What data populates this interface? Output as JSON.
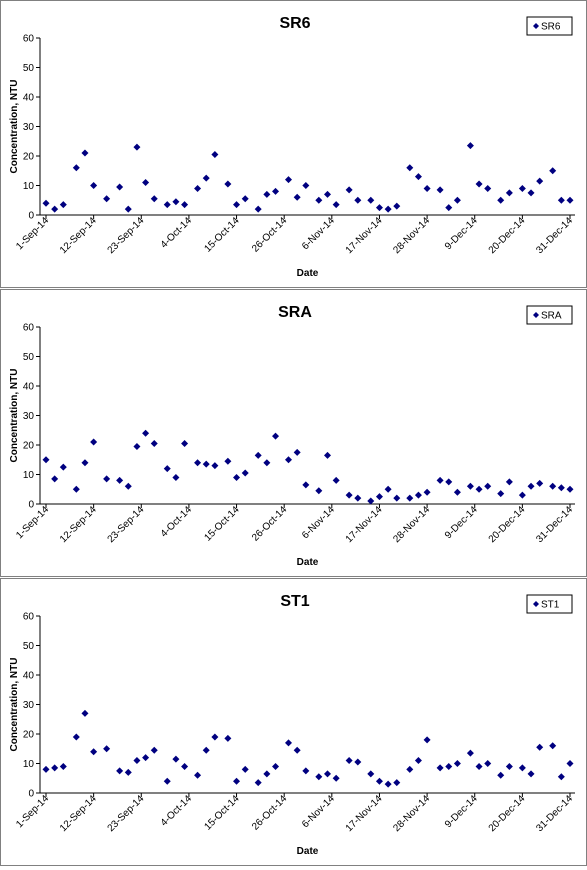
{
  "chart_data": [
    {
      "type": "scatter",
      "title": "SR6",
      "x_label": "Date",
      "y_label": "Concentration, NTU",
      "xlim": [
        "1-Sep-14",
        "31-Dec-14"
      ],
      "xticks": [
        "1-Sep-14",
        "12-Sep-14",
        "23-Sep-14",
        "4-Oct-14",
        "15-Oct-14",
        "26-Oct-14",
        "6-Nov-14",
        "17-Nov-14",
        "28-Nov-14",
        "9-Dec-14",
        "20-Dec-14",
        "31-Dec-14"
      ],
      "ylim": [
        0,
        60
      ],
      "yticks": [
        0,
        10,
        20,
        30,
        40,
        50,
        60
      ],
      "legend": "top-right",
      "series": [
        {
          "name": "SR6",
          "color": "#000080",
          "x": [
            "1-Sep-14",
            "3-Sep-14",
            "5-Sep-14",
            "8-Sep-14",
            "10-Sep-14",
            "12-Sep-14",
            "15-Sep-14",
            "18-Sep-14",
            "20-Sep-14",
            "22-Sep-14",
            "24-Sep-14",
            "26-Sep-14",
            "29-Sep-14",
            "1-Oct-14",
            "3-Oct-14",
            "6-Oct-14",
            "8-Oct-14",
            "10-Oct-14",
            "13-Oct-14",
            "15-Oct-14",
            "17-Oct-14",
            "20-Oct-14",
            "22-Oct-14",
            "24-Oct-14",
            "27-Oct-14",
            "29-Oct-14",
            "31-Oct-14",
            "3-Nov-14",
            "5-Nov-14",
            "7-Nov-14",
            "10-Nov-14",
            "12-Nov-14",
            "15-Nov-14",
            "17-Nov-14",
            "19-Nov-14",
            "21-Nov-14",
            "24-Nov-14",
            "26-Nov-14",
            "28-Nov-14",
            "1-Dec-14",
            "3-Dec-14",
            "5-Dec-14",
            "8-Dec-14",
            "10-Dec-14",
            "12-Dec-14",
            "15-Dec-14",
            "17-Dec-14",
            "20-Dec-14",
            "22-Dec-14",
            "24-Dec-14",
            "27-Dec-14",
            "29-Dec-14",
            "31-Dec-14"
          ],
          "values": [
            4,
            2,
            3.5,
            16,
            21,
            10,
            5.5,
            9.5,
            2,
            23,
            11,
            5.5,
            3.5,
            4.5,
            3.5,
            9,
            12.5,
            20.5,
            10.5,
            3.5,
            5.5,
            2,
            7,
            8,
            12,
            6,
            10,
            5,
            7,
            3.5,
            8.5,
            5,
            5,
            2.5,
            2,
            3,
            16,
            13,
            9,
            8.5,
            2.5,
            5,
            23.5,
            10.5,
            9,
            5,
            7.5,
            9,
            7.5,
            11.5,
            15,
            5,
            5
          ]
        }
      ]
    },
    {
      "type": "scatter",
      "title": "SRA",
      "x_label": "Date",
      "y_label": "Concentration, NTU",
      "xlim": [
        "1-Sep-14",
        "31-Dec-14"
      ],
      "xticks": [
        "1-Sep-14",
        "12-Sep-14",
        "23-Sep-14",
        "4-Oct-14",
        "15-Oct-14",
        "26-Oct-14",
        "6-Nov-14",
        "17-Nov-14",
        "28-Nov-14",
        "9-Dec-14",
        "20-Dec-14",
        "31-Dec-14"
      ],
      "ylim": [
        0,
        60
      ],
      "yticks": [
        0,
        10,
        20,
        30,
        40,
        50,
        60
      ],
      "legend": "top-right",
      "series": [
        {
          "name": "SRA",
          "color": "#000080",
          "x": [
            "1-Sep-14",
            "3-Sep-14",
            "5-Sep-14",
            "8-Sep-14",
            "10-Sep-14",
            "12-Sep-14",
            "15-Sep-14",
            "18-Sep-14",
            "20-Sep-14",
            "22-Sep-14",
            "24-Sep-14",
            "26-Sep-14",
            "29-Sep-14",
            "1-Oct-14",
            "3-Oct-14",
            "6-Oct-14",
            "8-Oct-14",
            "10-Oct-14",
            "13-Oct-14",
            "15-Oct-14",
            "17-Oct-14",
            "20-Oct-14",
            "22-Oct-14",
            "24-Oct-14",
            "27-Oct-14",
            "29-Oct-14",
            "31-Oct-14",
            "3-Nov-14",
            "5-Nov-14",
            "7-Nov-14",
            "10-Nov-14",
            "12-Nov-14",
            "15-Nov-14",
            "17-Nov-14",
            "19-Nov-14",
            "21-Nov-14",
            "24-Nov-14",
            "26-Nov-14",
            "28-Nov-14",
            "1-Dec-14",
            "3-Dec-14",
            "5-Dec-14",
            "8-Dec-14",
            "10-Dec-14",
            "12-Dec-14",
            "15-Dec-14",
            "17-Dec-14",
            "20-Dec-14",
            "22-Dec-14",
            "24-Dec-14",
            "27-Dec-14",
            "29-Dec-14",
            "31-Dec-14"
          ],
          "values": [
            15,
            8.5,
            12.5,
            5,
            14,
            21,
            8.5,
            8,
            6,
            19.5,
            24,
            20.5,
            12,
            9,
            20.5,
            14,
            13.5,
            13,
            14.5,
            9,
            10.5,
            16.5,
            14,
            23,
            15,
            17.5,
            6.5,
            4.5,
            16.5,
            8,
            3,
            2,
            1,
            2.5,
            5,
            2,
            2,
            3,
            4,
            8,
            7.5,
            4,
            6,
            5,
            6,
            3.5,
            7.5,
            3,
            6,
            7,
            6,
            5.5,
            5
          ]
        }
      ]
    },
    {
      "type": "scatter",
      "title": "ST1",
      "x_label": "Date",
      "y_label": "Concentration, NTU",
      "xlim": [
        "1-Sep-14",
        "31-Dec-14"
      ],
      "xticks": [
        "1-Sep-14",
        "12-Sep-14",
        "23-Sep-14",
        "4-Oct-14",
        "15-Oct-14",
        "26-Oct-14",
        "6-Nov-14",
        "17-Nov-14",
        "28-Nov-14",
        "9-Dec-14",
        "20-Dec-14",
        "31-Dec-14"
      ],
      "ylim": [
        0,
        60
      ],
      "yticks": [
        0,
        10,
        20,
        30,
        40,
        50,
        60
      ],
      "legend": "top-right",
      "series": [
        {
          "name": "ST1",
          "color": "#000080",
          "x": [
            "1-Sep-14",
            "3-Sep-14",
            "5-Sep-14",
            "8-Sep-14",
            "10-Sep-14",
            "12-Sep-14",
            "15-Sep-14",
            "18-Sep-14",
            "20-Sep-14",
            "22-Sep-14",
            "24-Sep-14",
            "26-Sep-14",
            "29-Sep-14",
            "1-Oct-14",
            "3-Oct-14",
            "6-Oct-14",
            "8-Oct-14",
            "10-Oct-14",
            "13-Oct-14",
            "15-Oct-14",
            "17-Oct-14",
            "20-Oct-14",
            "22-Oct-14",
            "24-Oct-14",
            "27-Oct-14",
            "29-Oct-14",
            "31-Oct-14",
            "3-Nov-14",
            "5-Nov-14",
            "7-Nov-14",
            "10-Nov-14",
            "12-Nov-14",
            "15-Nov-14",
            "17-Nov-14",
            "19-Nov-14",
            "21-Nov-14",
            "24-Nov-14",
            "26-Nov-14",
            "28-Nov-14",
            "1-Dec-14",
            "3-Dec-14",
            "5-Dec-14",
            "8-Dec-14",
            "10-Dec-14",
            "12-Dec-14",
            "15-Dec-14",
            "17-Dec-14",
            "20-Dec-14",
            "22-Dec-14",
            "24-Dec-14",
            "27-Dec-14",
            "29-Dec-14",
            "31-Dec-14"
          ],
          "values": [
            8,
            8.5,
            9,
            19,
            27,
            14,
            15,
            7.5,
            7,
            11,
            12,
            14.5,
            4,
            11.5,
            9,
            6,
            14.5,
            19,
            18.5,
            4,
            8,
            3.5,
            6.5,
            9,
            17,
            14.5,
            7.5,
            5.5,
            6.5,
            5,
            11,
            10.5,
            6.5,
            4,
            3,
            3.5,
            8,
            11,
            18,
            8.5,
            9,
            10,
            13.5,
            9,
            10,
            6,
            9,
            8.5,
            6.5,
            15.5,
            16,
            5.5,
            10
          ]
        }
      ]
    }
  ]
}
